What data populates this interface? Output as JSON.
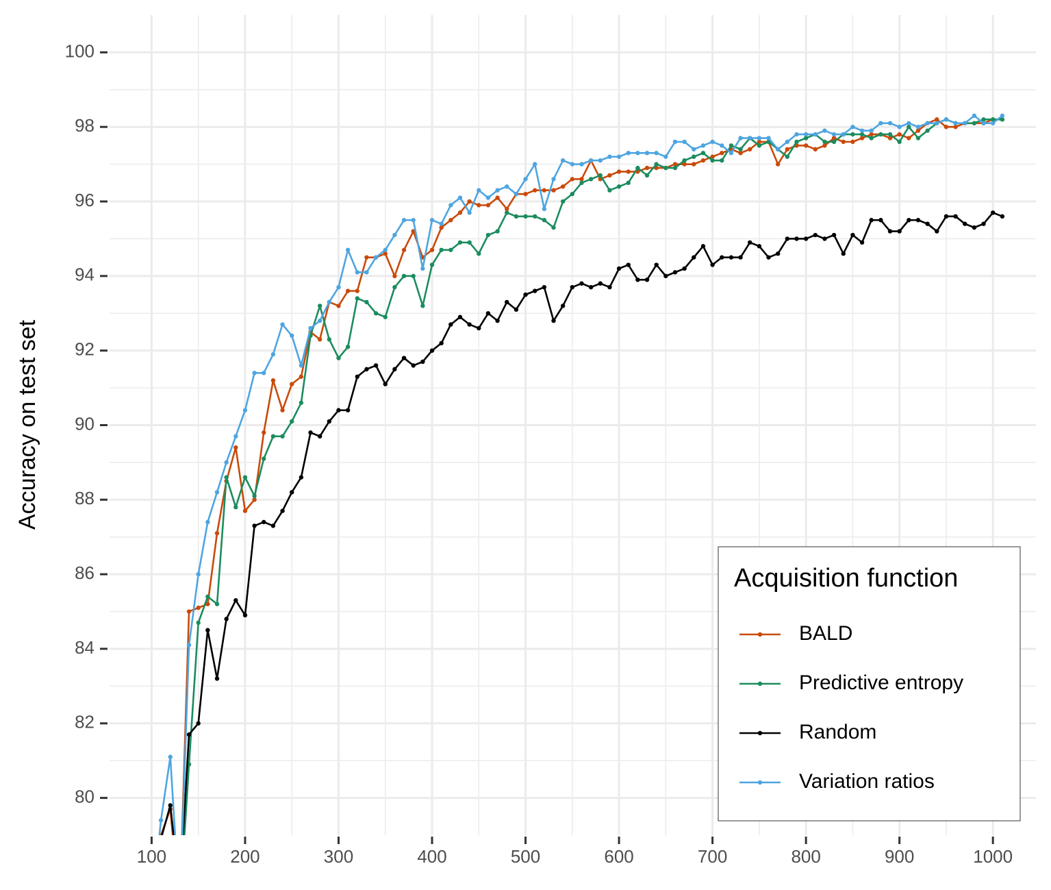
{
  "chart_data": {
    "type": "line",
    "y_label": "Accuracy on test set",
    "legend_title": "Acquisition function",
    "legend_position": "bottom-right",
    "grid": true,
    "xlim": [
      55,
      1046
    ],
    "ylim": [
      79,
      101
    ],
    "xticks": [
      100,
      200,
      300,
      400,
      500,
      600,
      700,
      800,
      900,
      1000
    ],
    "yticks": [
      80,
      82,
      84,
      86,
      88,
      90,
      92,
      94,
      96,
      98,
      100
    ],
    "x": [
      100,
      110,
      120,
      130,
      140,
      150,
      160,
      170,
      180,
      190,
      200,
      210,
      220,
      230,
      240,
      250,
      260,
      270,
      280,
      290,
      300,
      310,
      320,
      330,
      340,
      350,
      360,
      370,
      380,
      390,
      400,
      410,
      420,
      430,
      440,
      450,
      460,
      470,
      480,
      490,
      500,
      510,
      520,
      530,
      540,
      550,
      560,
      570,
      580,
      590,
      600,
      610,
      620,
      630,
      640,
      650,
      660,
      670,
      680,
      690,
      700,
      710,
      720,
      730,
      740,
      750,
      760,
      770,
      780,
      790,
      800,
      810,
      820,
      830,
      840,
      850,
      860,
      870,
      880,
      890,
      900,
      910,
      920,
      930,
      940,
      950,
      960,
      970,
      980,
      990,
      1000,
      1010
    ],
    "series": [
      {
        "name": "BALD",
        "color": "#c94a0a",
        "values": [
          77,
          79.0,
          79.7,
          77,
          85.0,
          85.1,
          85.2,
          87.1,
          88.5,
          89.4,
          87.7,
          88.0,
          89.8,
          91.2,
          90.4,
          91.1,
          91.3,
          92.5,
          92.3,
          93.3,
          93.2,
          93.6,
          93.6,
          94.5,
          94.5,
          94.6,
          94.0,
          94.7,
          95.2,
          94.5,
          94.7,
          95.3,
          95.5,
          95.7,
          96.0,
          95.9,
          95.9,
          96.1,
          95.8,
          96.2,
          96.2,
          96.3,
          96.3,
          96.3,
          96.4,
          96.6,
          96.6,
          97.1,
          96.6,
          96.7,
          96.8,
          96.8,
          96.8,
          96.9,
          96.9,
          96.9,
          97.0,
          97.0,
          97.0,
          97.1,
          97.2,
          97.3,
          97.4,
          97.3,
          97.4,
          97.6,
          97.6,
          97.0,
          97.4,
          97.5,
          97.5,
          97.4,
          97.5,
          97.7,
          97.6,
          97.6,
          97.7,
          97.8,
          97.8,
          97.7,
          97.8,
          97.7,
          97.9,
          98.1,
          98.2,
          98.0,
          98.0,
          98.1,
          98.1,
          98.1,
          98.2,
          98.2
        ]
      },
      {
        "name": "Predictive entropy",
        "color": "#1b8c5e",
        "values": [
          77,
          78.5,
          77,
          77,
          80.9,
          84.7,
          85.4,
          85.2,
          88.6,
          87.8,
          88.6,
          88.1,
          89.1,
          89.7,
          89.7,
          90.1,
          90.6,
          92.4,
          93.2,
          92.3,
          91.8,
          92.1,
          93.4,
          93.3,
          93.0,
          92.9,
          93.7,
          94.0,
          94.0,
          93.2,
          94.3,
          94.7,
          94.7,
          94.9,
          94.9,
          94.6,
          95.1,
          95.2,
          95.7,
          95.6,
          95.6,
          95.6,
          95.5,
          95.3,
          96.0,
          96.2,
          96.5,
          96.6,
          96.7,
          96.3,
          96.4,
          96.5,
          96.9,
          96.7,
          97.0,
          96.9,
          96.9,
          97.1,
          97.2,
          97.3,
          97.1,
          97.1,
          97.5,
          97.4,
          97.7,
          97.5,
          97.6,
          97.4,
          97.2,
          97.6,
          97.7,
          97.8,
          97.6,
          97.6,
          97.8,
          97.8,
          97.8,
          97.7,
          97.8,
          97.8,
          97.6,
          98.0,
          97.7,
          97.9,
          98.1,
          98.2,
          98.1,
          98.1,
          98.1,
          98.2,
          98.2,
          98.2
        ]
      },
      {
        "name": "Random",
        "color": "#000000",
        "values": [
          77,
          78.9,
          79.8,
          77.5,
          81.7,
          82.0,
          84.5,
          83.2,
          84.8,
          85.3,
          84.9,
          87.3,
          87.4,
          87.3,
          87.7,
          88.2,
          88.6,
          89.8,
          89.7,
          90.1,
          90.4,
          90.4,
          91.3,
          91.5,
          91.6,
          91.1,
          91.5,
          91.8,
          91.6,
          91.7,
          92.0,
          92.2,
          92.7,
          92.9,
          92.7,
          92.6,
          93.0,
          92.8,
          93.3,
          93.1,
          93.5,
          93.6,
          93.7,
          92.8,
          93.2,
          93.7,
          93.8,
          93.7,
          93.8,
          93.7,
          94.2,
          94.3,
          93.9,
          93.9,
          94.3,
          94.0,
          94.1,
          94.2,
          94.5,
          94.8,
          94.3,
          94.5,
          94.5,
          94.5,
          94.9,
          94.8,
          94.5,
          94.6,
          95.0,
          95.0,
          95.0,
          95.1,
          95.0,
          95.1,
          94.6,
          95.1,
          94.9,
          95.5,
          95.5,
          95.2,
          95.2,
          95.5,
          95.5,
          95.4,
          95.2,
          95.6,
          95.6,
          95.4,
          95.3,
          95.4,
          95.7,
          95.6
        ]
      },
      {
        "name": "Variation ratios",
        "color": "#4ea5e0",
        "values": [
          77,
          79.4,
          81.1,
          77,
          84.1,
          86.0,
          87.4,
          88.2,
          89.0,
          89.7,
          90.4,
          91.4,
          91.4,
          91.9,
          92.7,
          92.4,
          91.6,
          92.6,
          92.8,
          93.3,
          93.7,
          94.7,
          94.1,
          94.1,
          94.5,
          94.7,
          95.1,
          95.5,
          95.5,
          94.2,
          95.5,
          95.4,
          95.9,
          96.1,
          95.7,
          96.3,
          96.1,
          96.3,
          96.4,
          96.2,
          96.6,
          97.0,
          95.8,
          96.6,
          97.1,
          97.0,
          97.0,
          97.1,
          97.1,
          97.2,
          97.2,
          97.3,
          97.3,
          97.3,
          97.3,
          97.2,
          97.6,
          97.6,
          97.4,
          97.5,
          97.6,
          97.5,
          97.3,
          97.7,
          97.7,
          97.7,
          97.7,
          97.4,
          97.6,
          97.8,
          97.8,
          97.8,
          97.9,
          97.8,
          97.8,
          98.0,
          97.9,
          97.9,
          98.1,
          98.1,
          98.0,
          98.1,
          98.0,
          98.1,
          98.1,
          98.2,
          98.1,
          98.1,
          98.3,
          98.1,
          98.1,
          98.3
        ]
      }
    ]
  }
}
